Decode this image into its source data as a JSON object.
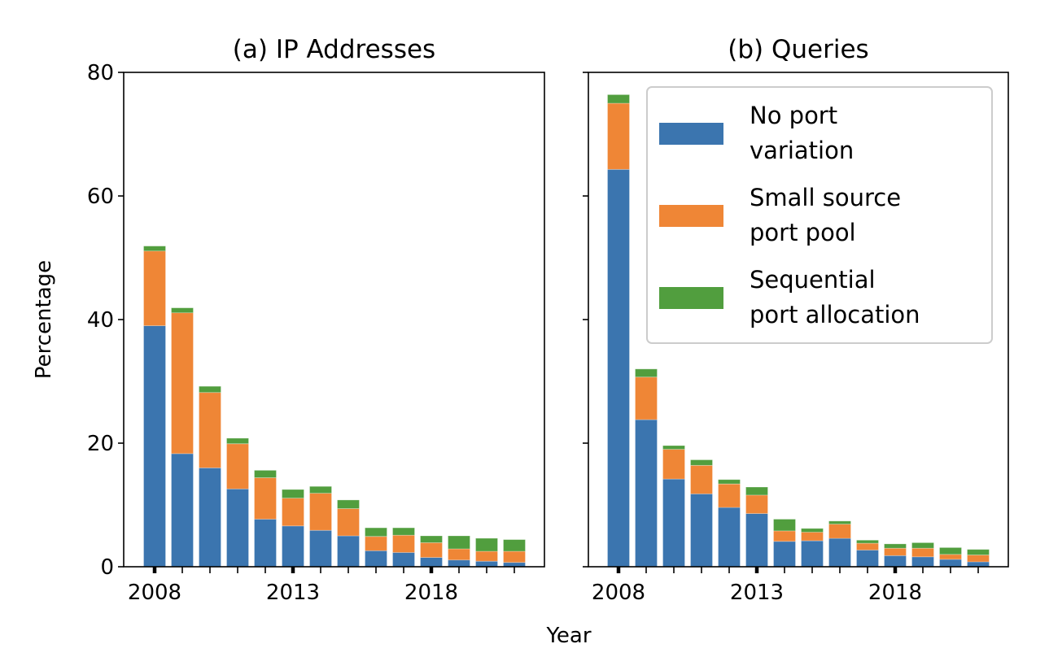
{
  "chart_data": [
    {
      "type": "bar",
      "stacked": true,
      "title": "(a) IP Addresses",
      "xlabel": "Year",
      "ylabel": "Percentage",
      "ylim": [
        0,
        80
      ],
      "yticks": [
        0,
        20,
        40,
        60,
        80
      ],
      "ytick_labels": [
        "0",
        "20",
        "40",
        "60",
        "80"
      ],
      "categories": [
        2008,
        2009,
        2010,
        2011,
        2012,
        2013,
        2014,
        2015,
        2016,
        2017,
        2018,
        2019,
        2020,
        2021
      ],
      "xtick_labels": {
        "2008": "2008",
        "2013": "2013",
        "2018": "2018"
      },
      "grid": false,
      "series": [
        {
          "name": "No port variation",
          "color": "#3b75af",
          "values": [
            39.0,
            18.3,
            16.0,
            12.6,
            7.7,
            6.6,
            5.9,
            5.0,
            2.6,
            2.3,
            1.5,
            1.1,
            0.9,
            0.7
          ]
        },
        {
          "name": "Small source port pool",
          "color": "#ef8636",
          "values": [
            12.1,
            22.8,
            12.2,
            7.3,
            6.7,
            4.5,
            6.0,
            4.4,
            2.3,
            2.8,
            2.4,
            1.8,
            1.6,
            1.8
          ]
        },
        {
          "name": "Sequential port allocation",
          "color": "#519e3e",
          "values": [
            0.8,
            0.8,
            1.0,
            0.9,
            1.2,
            1.4,
            1.1,
            1.4,
            1.4,
            1.2,
            1.1,
            2.1,
            2.1,
            1.9
          ]
        }
      ]
    },
    {
      "type": "bar",
      "stacked": true,
      "title": "(b) Queries",
      "xlabel": "Year",
      "ylabel": "",
      "ylim": [
        0,
        80
      ],
      "yticks": [
        0,
        20,
        40,
        60,
        80
      ],
      "categories": [
        2008,
        2009,
        2010,
        2011,
        2012,
        2013,
        2014,
        2015,
        2016,
        2017,
        2018,
        2019,
        2020,
        2021
      ],
      "xtick_labels": {
        "2008": "2008",
        "2013": "2013",
        "2018": "2018"
      },
      "grid": false,
      "legend": {
        "placement": "top-right",
        "entries": [
          {
            "lines": [
              "No port",
              "variation"
            ],
            "color": "#3b75af"
          },
          {
            "lines": [
              "Small source",
              "port pool"
            ],
            "color": "#ef8636"
          },
          {
            "lines": [
              "Sequential",
              "port allocation"
            ],
            "color": "#519e3e"
          }
        ]
      },
      "series": [
        {
          "name": "No port variation",
          "color": "#3b75af",
          "values": [
            64.3,
            23.8,
            14.2,
            11.8,
            9.6,
            8.6,
            4.1,
            4.2,
            4.6,
            2.7,
            1.8,
            1.6,
            1.2,
            0.8
          ]
        },
        {
          "name": "Small source port pool",
          "color": "#ef8636",
          "values": [
            10.7,
            6.9,
            4.8,
            4.6,
            3.8,
            3.0,
            1.7,
            1.4,
            2.3,
            1.1,
            1.2,
            1.4,
            0.8,
            1.1
          ]
        },
        {
          "name": "Sequential port allocation",
          "color": "#519e3e",
          "values": [
            1.4,
            1.3,
            0.6,
            0.9,
            0.7,
            1.3,
            1.9,
            0.6,
            0.5,
            0.5,
            0.7,
            0.9,
            1.1,
            0.9
          ]
        }
      ]
    }
  ],
  "shared": {
    "xlabel": "Year",
    "ylabel": "Percentage"
  }
}
